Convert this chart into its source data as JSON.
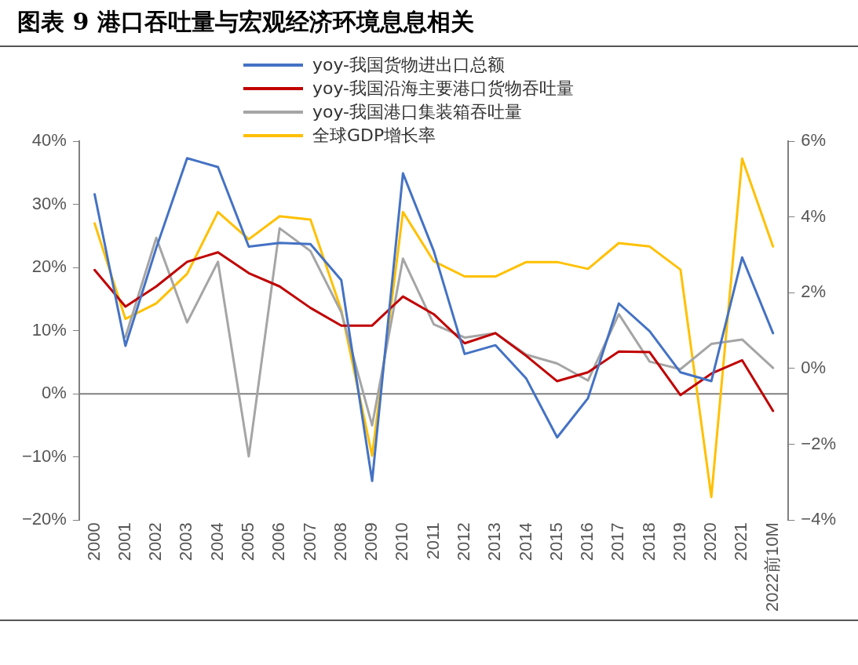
{
  "chart_data": {
    "type": "line",
    "title": "图表 9 港口吞吐量与宏观经济环境息息相关",
    "categories": [
      "2000",
      "2001",
      "2002",
      "2003",
      "2004",
      "2005",
      "2006",
      "2007",
      "2008",
      "2009",
      "2010",
      "2011",
      "2012",
      "2013",
      "2014",
      "2015",
      "2016",
      "2017",
      "2018",
      "2019",
      "2020",
      "2021",
      "2022前10M"
    ],
    "series": [
      {
        "name": "yoy-我国货物进出口总额",
        "color": "#4472c4",
        "values": [
          31.6,
          7.6,
          23.1,
          37.3,
          35.9,
          23.3,
          23.9,
          23.7,
          18.0,
          -13.8,
          34.9,
          22.6,
          6.3,
          7.7,
          2.4,
          -6.9,
          -0.7,
          14.3,
          9.9,
          3.4,
          2.0,
          21.6,
          9.6
        ]
      },
      {
        "name": "yoy-我国沿海主要港口货物吞吐量",
        "color": "#c00000",
        "values": [
          19.6,
          13.8,
          17.0,
          20.9,
          22.4,
          19.1,
          17.0,
          13.6,
          10.8,
          10.8,
          15.4,
          12.6,
          8.0,
          9.6,
          6.0,
          2.0,
          3.4,
          6.7,
          6.6,
          -0.2,
          3.2,
          5.3,
          -2.7
        ]
      },
      {
        "name": "yoy-我国港口集装箱吞吐量",
        "color": "#a5a5a5",
        "values": [
          null,
          9.0,
          24.7,
          11.3,
          20.9,
          -9.9,
          26.2,
          22.6,
          12.9,
          -5.0,
          21.4,
          11.0,
          8.9,
          9.6,
          6.2,
          4.8,
          2.1,
          12.6,
          5.1,
          3.9,
          7.9,
          8.6,
          4.1
        ]
      },
      {
        "name": "全球GDP增长率",
        "color": "#ffc000",
        "axis": "y2",
        "values": [
          3.83,
          1.31,
          1.72,
          2.5,
          4.13,
          3.41,
          4.02,
          3.93,
          1.54,
          -2.3,
          4.13,
          2.83,
          2.43,
          2.43,
          2.81,
          2.81,
          2.63,
          3.31,
          3.22,
          2.61,
          -3.39,
          5.54,
          3.22
        ]
      }
    ],
    "ylim": [
      -20,
      40
    ],
    "yticks": [
      {
        "value": -20,
        "label": "−20%"
      },
      {
        "value": -10,
        "label": "−10%"
      },
      {
        "value": 0,
        "label": "0%"
      },
      {
        "value": 10,
        "label": "10%"
      },
      {
        "value": 20,
        "label": "20%"
      },
      {
        "value": 30,
        "label": "30%"
      },
      {
        "value": 40,
        "label": "40%"
      }
    ],
    "y2lim": [
      -4,
      6
    ],
    "y2ticks": [
      {
        "value": -4,
        "label": "−4%"
      },
      {
        "value": -2,
        "label": "−2%"
      },
      {
        "value": 0,
        "label": "0%"
      },
      {
        "value": 2,
        "label": "2%"
      },
      {
        "value": 4,
        "label": "4%"
      },
      {
        "value": 6,
        "label": "6%"
      }
    ],
    "ref_lines": [
      {
        "axis": "y",
        "value": 0,
        "color": "#808080"
      }
    ],
    "grid": false,
    "legend": "top",
    "marker": "none",
    "line_style": "solid"
  }
}
